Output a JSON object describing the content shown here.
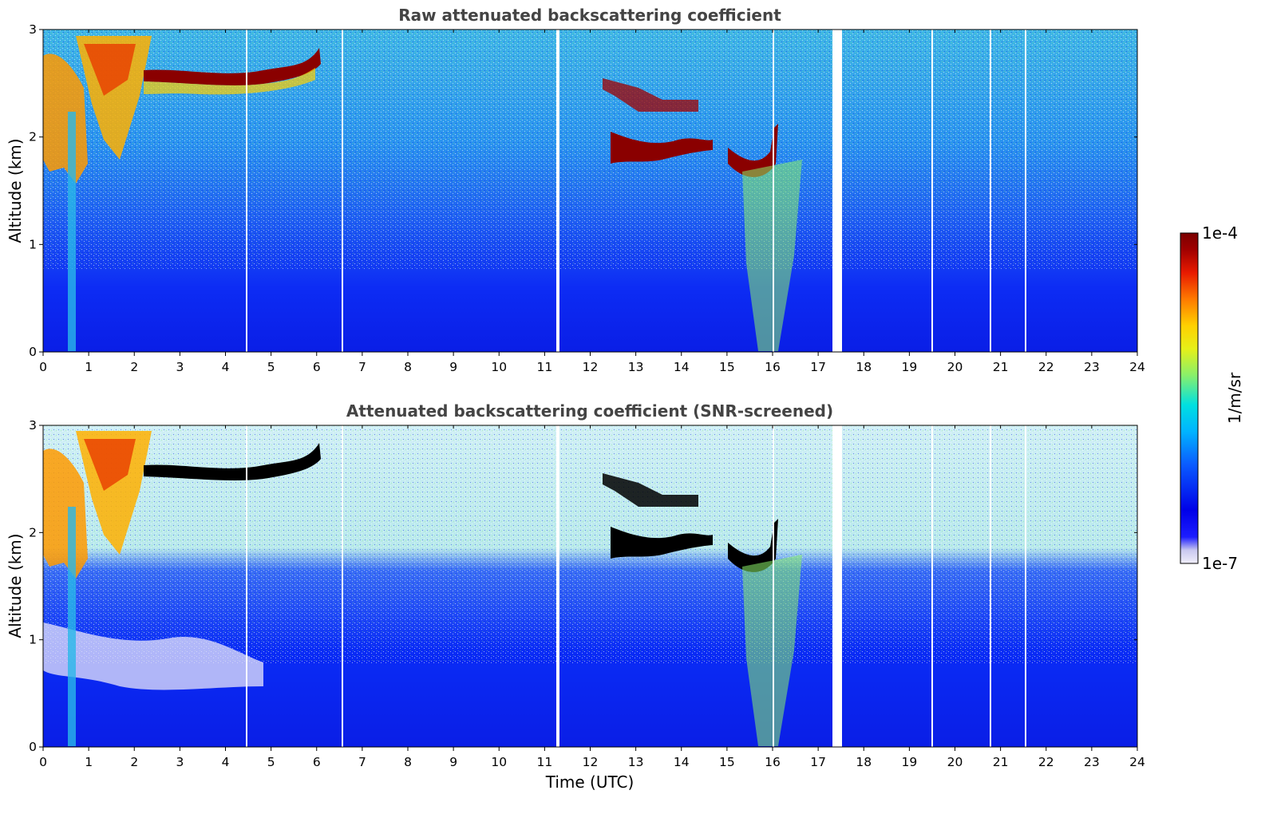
{
  "chart_data": [
    {
      "type": "heatmap",
      "title": "Raw attenuated backscattering coefficient",
      "xlabel": "",
      "ylabel": "Altitude (km)",
      "xlim": [
        0,
        24
      ],
      "ylim": [
        0,
        3
      ],
      "x_ticks": [
        "0",
        "1",
        "2",
        "3",
        "4",
        "5",
        "6",
        "7",
        "8",
        "9",
        "10",
        "11",
        "12",
        "13",
        "14",
        "15",
        "16",
        "17",
        "18",
        "19",
        "20",
        "21",
        "22",
        "23",
        "24"
      ],
      "y_ticks": [
        "0",
        "1",
        "2",
        "3"
      ],
      "cloud_layers_km": [
        {
          "start": 2.2,
          "end": 6.0,
          "altitude": 2.6
        },
        {
          "start": 12.3,
          "end": 14.7,
          "altitude": 1.95
        },
        {
          "start": 15.0,
          "end": 16.1,
          "altitude": 1.7
        }
      ]
    },
    {
      "type": "heatmap",
      "title": "Attenuated backscattering coefficient (SNR-screened)",
      "xlabel": "Time (UTC)",
      "ylabel": "Altitude (km)",
      "xlim": [
        0,
        24
      ],
      "ylim": [
        0,
        3
      ],
      "x_ticks": [
        "0",
        "1",
        "2",
        "3",
        "4",
        "5",
        "6",
        "7",
        "8",
        "9",
        "10",
        "11",
        "12",
        "13",
        "14",
        "15",
        "16",
        "17",
        "18",
        "19",
        "20",
        "21",
        "22",
        "23",
        "24"
      ],
      "y_ticks": [
        "0",
        "1",
        "2",
        "3"
      ]
    }
  ],
  "colorbar": {
    "label": "1/m/sr",
    "max_label": "1e-4",
    "min_label": "1e-7",
    "scale": "log",
    "colormap": [
      "#f0eefa",
      "#c9c8f0",
      "#1d1dff",
      "#0000e8",
      "#0a5cff",
      "#00b4ff",
      "#00e0e0",
      "#8af06a",
      "#e6f018",
      "#ffd000",
      "#ff7a00",
      "#e81a00",
      "#a00000",
      "#7a0000"
    ]
  }
}
